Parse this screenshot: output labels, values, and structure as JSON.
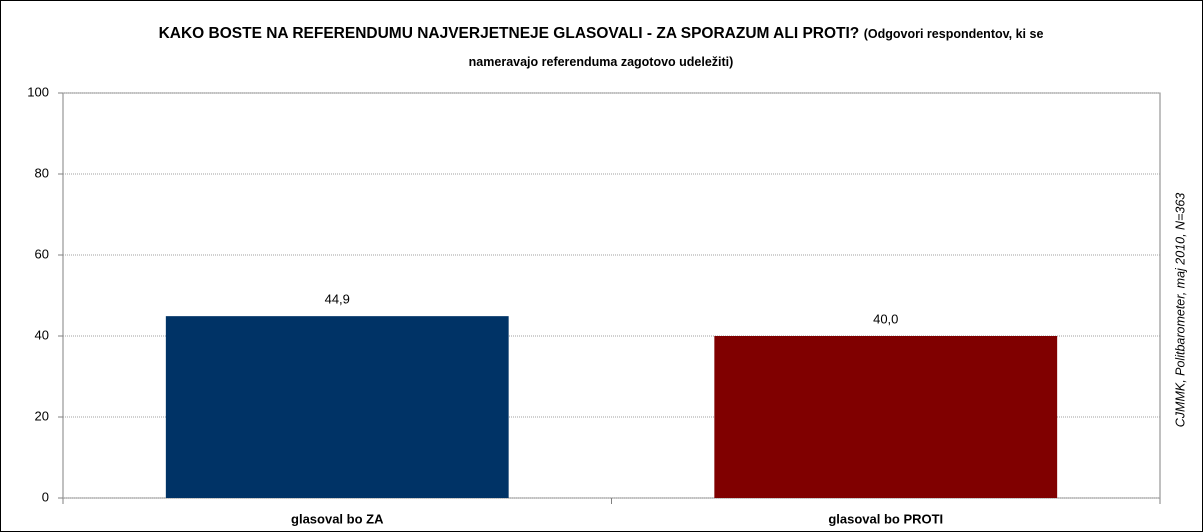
{
  "chart_data": {
    "type": "bar",
    "title": "KAKO BOSTE NA REFERENDUMU NAJVERJETNEJE GLASOVALI - ZA SPORAZUM ALI PROTI?",
    "subtitle": "(Odgovori respondentov, ki se nameravajo referenduma zagotovo udeležiti)",
    "source": "CJMMK, Politbarometer, maj 2010, N=363",
    "categories": [
      "glasoval bo ZA",
      "glasoval bo PROTI"
    ],
    "values": [
      44.9,
      40.0
    ],
    "value_labels": [
      "44,9",
      "40,0"
    ],
    "colors": [
      "#003366",
      "#800000"
    ],
    "ylim": [
      0,
      100
    ],
    "yticks": [
      0,
      20,
      40,
      60,
      80,
      100
    ],
    "grid": true
  }
}
